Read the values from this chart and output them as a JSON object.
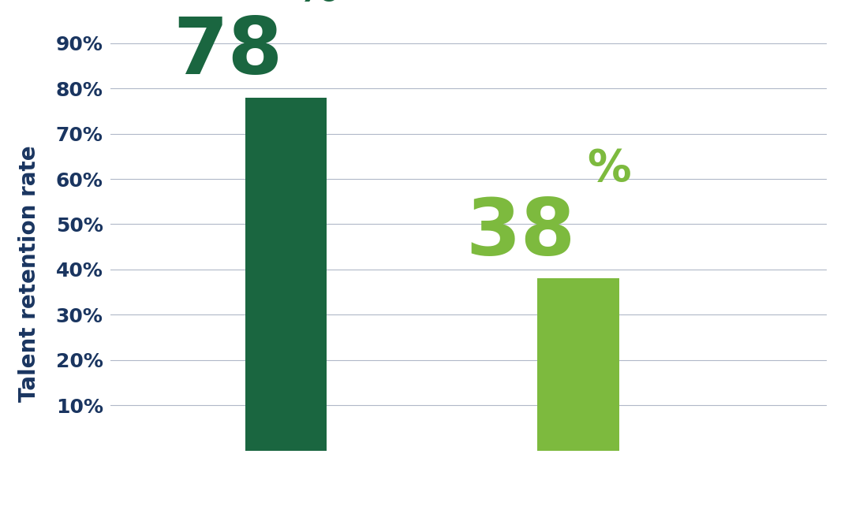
{
  "values": [
    78,
    38
  ],
  "bar_colors": [
    "#1a6640",
    "#7dba3e"
  ],
  "label_colors": [
    "#1a6640",
    "#7dba3e"
  ],
  "label_num_fontsize": 72,
  "label_pct_fontsize": 40,
  "ylabel": "Talent retention rate",
  "ylabel_color": "#1a3560",
  "ylabel_fontsize": 20,
  "ytick_color": "#1a3560",
  "ytick_fontsize": 18,
  "ytick_min": 10,
  "ytick_max": 90,
  "ytick_step": 10,
  "ymin": -18,
  "ymax": 96,
  "background_color": "#ffffff",
  "grid_color": "#b0b8c8",
  "bar_width": 0.28,
  "bar_positions": [
    1,
    2
  ],
  "xlim": [
    0.4,
    2.85
  ]
}
